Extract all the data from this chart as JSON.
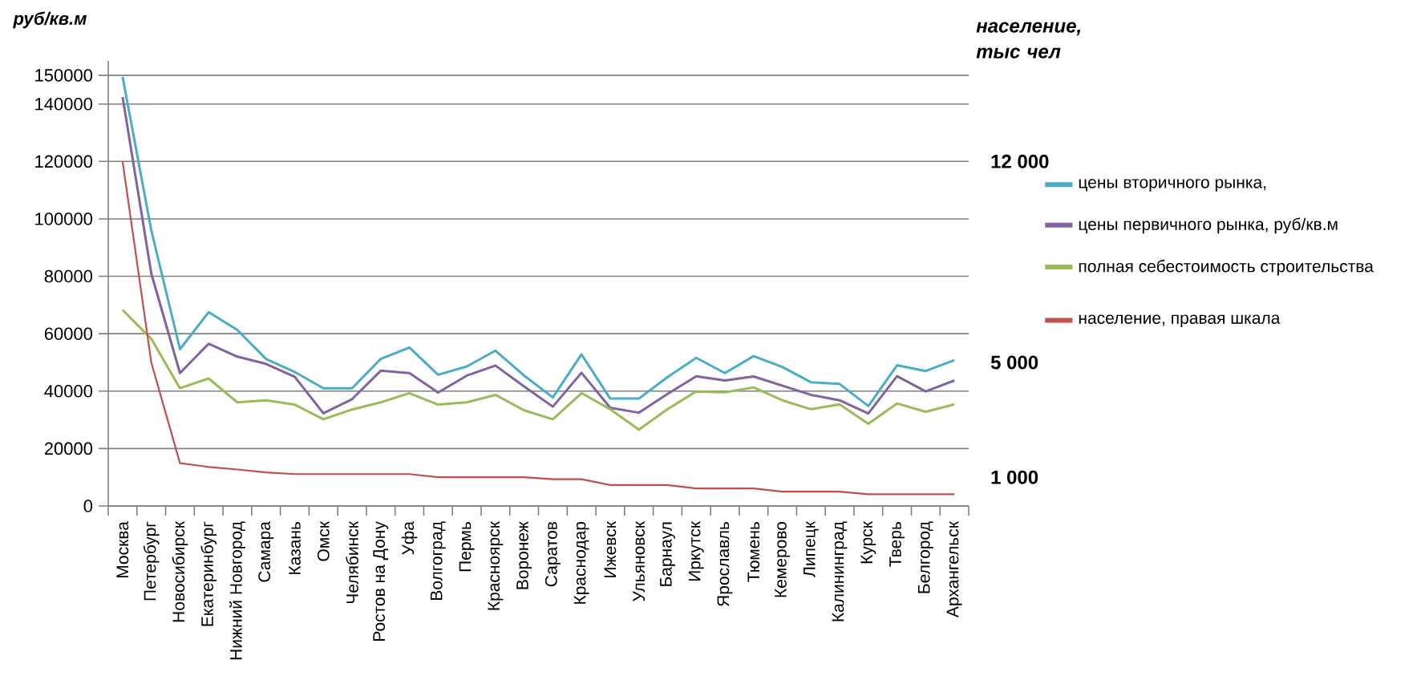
{
  "chart_data": {
    "type": "line",
    "ylabel": "руб/кв.м",
    "y2label": "население, тыс чел",
    "categories": [
      "Москва",
      "Петербург",
      "Новосибирск",
      "Екатеринбург",
      "Нижний Новгород",
      "Самара",
      "Казань",
      "Омск",
      "Челябинск",
      "Ростов на Дону",
      "Уфа",
      "Волгоград",
      "Пермь",
      "Красноярск",
      "Воронеж",
      "Саратов",
      "Краснодар",
      "Ижевск",
      "Ульяновск",
      "Барнаул",
      "Иркутск",
      "Ярославль",
      "Тюмень",
      "Кемерово",
      "Липецк",
      "Калининград",
      "Курск",
      "Тверь",
      "Белгород",
      "Архангельск"
    ],
    "series": [
      {
        "name": "цены вторичного рынка,",
        "color": "#4bacc6",
        "values": [
          149500,
          96000,
          54600,
          67500,
          61300,
          51200,
          46700,
          41000,
          41000,
          51200,
          55200,
          45700,
          48600,
          54100,
          45400,
          37800,
          52800,
          37400,
          37400,
          44900,
          51600,
          46300,
          52200,
          48400,
          43100,
          42500,
          34800,
          49000,
          47000,
          50800
        ]
      },
      {
        "name": "цены первичного рынка, руб/кв.м",
        "color": "#8064a2",
        "values": [
          142400,
          81000,
          46300,
          56500,
          52000,
          49500,
          45000,
          32300,
          37200,
          47100,
          46300,
          39500,
          45400,
          48900,
          41600,
          34600,
          46400,
          34200,
          32500,
          39000,
          45200,
          43700,
          45100,
          41900,
          38700,
          36800,
          32200,
          45200,
          39900,
          43700
        ]
      },
      {
        "name": "полная себестоимость строительства",
        "color": "#9bbb59",
        "values": [
          68300,
          58200,
          41000,
          44400,
          36100,
          36800,
          35300,
          30200,
          33600,
          36100,
          39300,
          35300,
          36100,
          38700,
          33300,
          30200,
          39300,
          33700,
          26600,
          33700,
          39900,
          39600,
          41300,
          36800,
          33700,
          35400,
          28600,
          35700,
          32800,
          35400
        ]
      },
      {
        "name": "население, правая шкала",
        "color": "#c0504d",
        "axis": "y2",
        "values": [
          12000,
          5000,
          1490,
          1360,
          1270,
          1170,
          1110,
          1110,
          1110,
          1110,
          1110,
          1000,
          1000,
          1000,
          1000,
          930,
          930,
          730,
          730,
          730,
          610,
          610,
          610,
          500,
          500,
          500,
          410,
          410,
          410,
          410
        ]
      }
    ],
    "ylim": [
      0,
      155000
    ],
    "yticks": [
      0,
      20000,
      40000,
      60000,
      80000,
      100000,
      120000,
      140000,
      150000
    ],
    "y2lim": [
      0,
      15500
    ],
    "y2ticks": [
      {
        "value": 1000,
        "label": "1 000"
      },
      {
        "value": 5000,
        "label": "5 000"
      },
      {
        "value": 12000,
        "label": "12 000"
      }
    ],
    "grid": "y",
    "legend": "right",
    "marker": "none",
    "line_style": "solid"
  }
}
